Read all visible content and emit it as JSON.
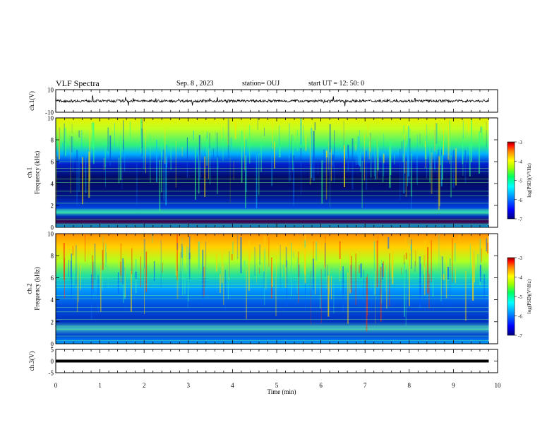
{
  "header": {
    "title": "VLF Spectra",
    "date": "Sep. 8 , 2023",
    "station": "station= OUJ",
    "start": "start  UT =   12: 50: 0"
  },
  "chart_data": [
    {
      "type": "line",
      "ylabel": "ch.1(V)",
      "ylim": [
        -10,
        10
      ],
      "yticks": [
        "10",
        "-10"
      ],
      "x": [
        0,
        0.5,
        1,
        1.5,
        2,
        2.5,
        3,
        3.5,
        4,
        4.5,
        5,
        5.5,
        6,
        6.5,
        7,
        7.5,
        8,
        8.5,
        9,
        9.8
      ],
      "y": [
        0.2,
        -0.3,
        0.1,
        0.4,
        -0.2,
        0.3,
        -0.1,
        0.2,
        0.0,
        -0.3,
        0.2,
        0.1,
        -0.2,
        0.3,
        0.0,
        -0.1,
        0.2,
        -0.2,
        0.1,
        0.0
      ]
    },
    {
      "type": "heatmap",
      "ylabel": "ch.1\nFrequency (kHz)",
      "ylabel_lines": [
        "ch.1",
        "Frequency (kHz)"
      ],
      "ylim": [
        0,
        10
      ],
      "yticks": [
        "0",
        "2",
        "4",
        "6",
        "8",
        "10"
      ],
      "colorbar": {
        "label": "log(PSD)(V²/Hz)",
        "range": [
          -7,
          -3
        ],
        "ticks": [
          "-3",
          "-4",
          "-5",
          "-6",
          "-7"
        ]
      }
    },
    {
      "type": "heatmap",
      "ylabel": "ch.2\nFrequency (kHz)",
      "ylabel_lines": [
        "ch.2",
        "Frequency (kHz)"
      ],
      "ylim": [
        0,
        10
      ],
      "yticks": [
        "0",
        "2",
        "4",
        "6",
        "8",
        "10"
      ],
      "colorbar": {
        "label": "log(PSD)(V²/Hz)",
        "range": [
          -7,
          -3
        ],
        "ticks": [
          "-3",
          "-4",
          "-5",
          "-6",
          "-7"
        ]
      }
    },
    {
      "type": "line",
      "ylabel": "ch.3(V)",
      "ylim": [
        -5,
        5
      ],
      "yticks": [
        "5",
        "0",
        "-5"
      ],
      "x": [
        0,
        9.8
      ],
      "y": [
        0,
        0
      ]
    }
  ],
  "xaxis": {
    "label": "Time (min)",
    "ticks": [
      "0",
      "1",
      "2",
      "3",
      "4",
      "5",
      "6",
      "7",
      "8",
      "9",
      "10"
    ],
    "range": [
      0,
      10
    ]
  },
  "colors": {
    "colormap": [
      "#000080",
      "#0000ff",
      "#00a0ff",
      "#00ffff",
      "#00ff60",
      "#a0ff00",
      "#ffff00",
      "#ff8000",
      "#ff0000",
      "#800000"
    ]
  }
}
